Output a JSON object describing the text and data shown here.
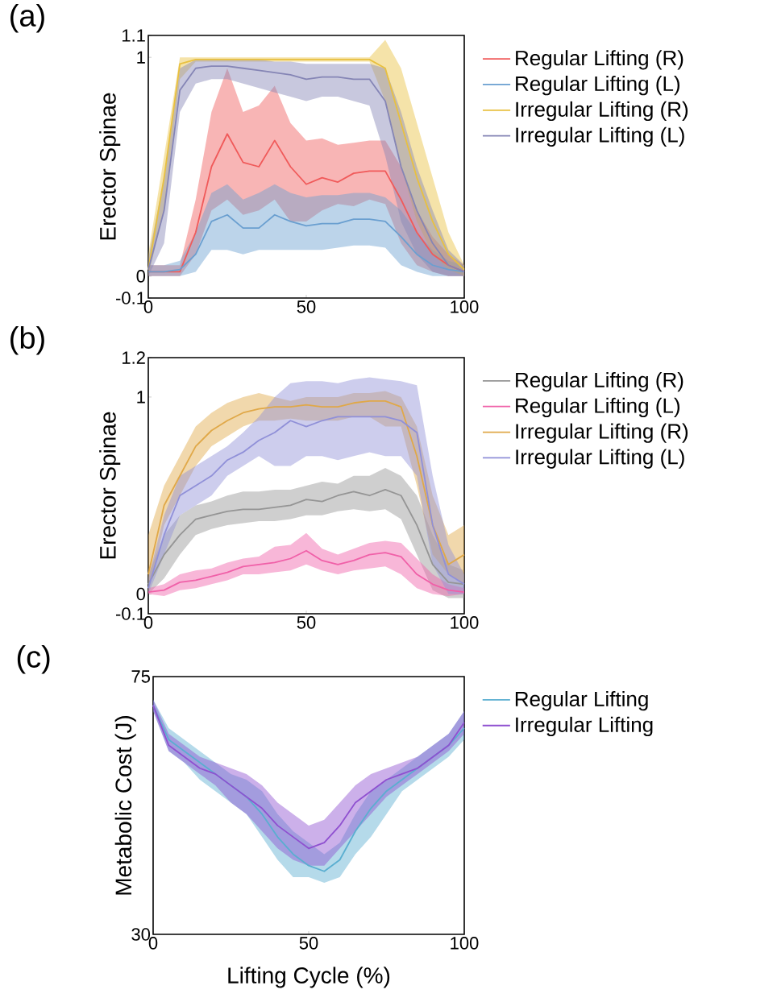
{
  "chart_data": [
    {
      "type": "line",
      "title": "(a)",
      "ylabel": "Erector Spinae",
      "xlim": [
        0,
        100
      ],
      "ylim": [
        -0.1,
        1.1
      ],
      "xticks": [
        0,
        50,
        100
      ],
      "yticks": [
        -0.1,
        0,
        1,
        1.1
      ],
      "legend": "right",
      "grid": false,
      "line_style": "solid",
      "x": [
        0,
        5,
        10,
        15,
        20,
        25,
        30,
        35,
        40,
        45,
        50,
        55,
        60,
        65,
        70,
        75,
        80,
        85,
        90,
        95,
        100
      ],
      "series": [
        {
          "name": "Regular Lifting (R)",
          "color": "#f05a5a",
          "values": [
            0.02,
            0.02,
            0.02,
            0.2,
            0.5,
            0.65,
            0.52,
            0.5,
            0.62,
            0.5,
            0.42,
            0.45,
            0.43,
            0.47,
            0.48,
            0.48,
            0.35,
            0.2,
            0.1,
            0.05,
            0.02
          ],
          "lower": [
            0,
            0,
            0,
            0.1,
            0.3,
            0.35,
            0.28,
            0.3,
            0.35,
            0.25,
            0.25,
            0.3,
            0.33,
            0.32,
            0.35,
            0.33,
            0.15,
            0.05,
            0.02,
            0,
            0
          ],
          "upper": [
            0.05,
            0.05,
            0.05,
            0.35,
            0.75,
            0.95,
            0.75,
            0.78,
            0.87,
            0.7,
            0.62,
            0.63,
            0.6,
            0.61,
            0.62,
            0.62,
            0.5,
            0.3,
            0.18,
            0.1,
            0.05
          ]
        },
        {
          "name": "Regular Lifting (L)",
          "color": "#6a9fd0",
          "values": [
            0.02,
            0.02,
            0.03,
            0.1,
            0.25,
            0.28,
            0.22,
            0.22,
            0.28,
            0.25,
            0.23,
            0.24,
            0.24,
            0.26,
            0.26,
            0.25,
            0.18,
            0.1,
            0.05,
            0.03,
            0.02
          ],
          "lower": [
            0,
            0,
            0,
            0.02,
            0.12,
            0.12,
            0.1,
            0.12,
            0.12,
            0.12,
            0.12,
            0.12,
            0.13,
            0.14,
            0.14,
            0.13,
            0.05,
            0.02,
            0,
            0,
            0
          ],
          "upper": [
            0.05,
            0.05,
            0.07,
            0.2,
            0.38,
            0.42,
            0.35,
            0.38,
            0.42,
            0.38,
            0.36,
            0.37,
            0.37,
            0.38,
            0.38,
            0.36,
            0.3,
            0.2,
            0.12,
            0.07,
            0.05
          ]
        },
        {
          "name": "Irregular Lifting (R)",
          "color": "#e8c040",
          "values": [
            0.03,
            0.45,
            0.97,
            0.99,
            0.99,
            0.99,
            0.99,
            0.99,
            0.99,
            0.99,
            0.99,
            0.99,
            0.99,
            0.99,
            0.99,
            0.95,
            0.7,
            0.45,
            0.25,
            0.1,
            0.03
          ],
          "lower": [
            0,
            0.3,
            0.9,
            0.98,
            0.98,
            0.98,
            0.98,
            0.98,
            0.98,
            0.98,
            0.98,
            0.98,
            0.98,
            0.98,
            0.98,
            0.8,
            0.5,
            0.25,
            0.1,
            0.03,
            0
          ],
          "upper": [
            0.1,
            0.55,
            1.0,
            1.0,
            1.0,
            1.0,
            1.0,
            1.0,
            1.0,
            1.0,
            1.0,
            1.0,
            1.0,
            1.0,
            1.0,
            1.08,
            0.95,
            0.7,
            0.45,
            0.2,
            0.05
          ]
        },
        {
          "name": "Irregular Lifting (L)",
          "color": "#8585b5",
          "values": [
            0.03,
            0.3,
            0.85,
            0.95,
            0.96,
            0.96,
            0.95,
            0.94,
            0.93,
            0.92,
            0.9,
            0.91,
            0.91,
            0.9,
            0.9,
            0.8,
            0.5,
            0.3,
            0.15,
            0.05,
            0.02
          ],
          "lower": [
            0,
            0.15,
            0.75,
            0.88,
            0.9,
            0.9,
            0.88,
            0.86,
            0.84,
            0.82,
            0.8,
            0.82,
            0.82,
            0.8,
            0.78,
            0.55,
            0.25,
            0.1,
            0.02,
            0,
            0
          ],
          "upper": [
            0.08,
            0.45,
            0.95,
            0.99,
            0.99,
            0.99,
            0.99,
            0.99,
            0.98,
            0.98,
            0.97,
            0.97,
            0.97,
            0.97,
            0.97,
            0.95,
            0.75,
            0.5,
            0.3,
            0.12,
            0.05
          ]
        }
      ]
    },
    {
      "type": "line",
      "title": "(b)",
      "ylabel": "Erector Spinae",
      "xlim": [
        0,
        100
      ],
      "ylim": [
        -0.1,
        1.2
      ],
      "xticks": [
        0,
        50,
        100
      ],
      "yticks": [
        -0.1,
        0,
        1,
        1.2
      ],
      "legend": "right",
      "grid": false,
      "line_style": "solid",
      "x": [
        0,
        5,
        10,
        15,
        20,
        25,
        30,
        35,
        40,
        45,
        50,
        55,
        60,
        65,
        70,
        75,
        80,
        85,
        90,
        95,
        100
      ],
      "series": [
        {
          "name": "Regular Lifting (R)",
          "color": "#959595",
          "values": [
            0.05,
            0.2,
            0.3,
            0.38,
            0.4,
            0.42,
            0.43,
            0.43,
            0.44,
            0.45,
            0.48,
            0.47,
            0.5,
            0.52,
            0.5,
            0.53,
            0.5,
            0.35,
            0.15,
            0.06,
            0.05
          ],
          "lower": [
            0,
            0.08,
            0.2,
            0.3,
            0.33,
            0.35,
            0.36,
            0.37,
            0.37,
            0.38,
            0.4,
            0.4,
            0.42,
            0.43,
            0.42,
            0.43,
            0.38,
            0.2,
            0.02,
            -0.02,
            -0.02
          ],
          "upper": [
            0.1,
            0.3,
            0.4,
            0.45,
            0.47,
            0.5,
            0.52,
            0.52,
            0.53,
            0.53,
            0.55,
            0.57,
            0.56,
            0.6,
            0.6,
            0.64,
            0.6,
            0.5,
            0.3,
            0.15,
            0.12
          ]
        },
        {
          "name": "Regular Lifting (L)",
          "color": "#f060a8",
          "values": [
            0.01,
            0.02,
            0.06,
            0.07,
            0.09,
            0.11,
            0.14,
            0.15,
            0.16,
            0.18,
            0.22,
            0.17,
            0.15,
            0.17,
            0.2,
            0.21,
            0.19,
            0.1,
            0.05,
            0.02,
            0.01
          ],
          "lower": [
            0,
            -0.01,
            0.02,
            0.03,
            0.05,
            0.07,
            0.1,
            0.1,
            0.11,
            0.12,
            0.15,
            0.12,
            0.1,
            0.12,
            0.13,
            0.14,
            0.1,
            0.03,
            0,
            -0.01,
            0
          ],
          "upper": [
            0.03,
            0.05,
            0.1,
            0.12,
            0.13,
            0.16,
            0.18,
            0.19,
            0.24,
            0.25,
            0.31,
            0.23,
            0.2,
            0.23,
            0.26,
            0.27,
            0.26,
            0.18,
            0.1,
            0.05,
            0.03
          ]
        },
        {
          "name": "Irregular Lifting (R)",
          "color": "#e0a848",
          "values": [
            0.1,
            0.45,
            0.6,
            0.75,
            0.83,
            0.88,
            0.92,
            0.94,
            0.95,
            0.95,
            0.96,
            0.95,
            0.95,
            0.97,
            0.98,
            0.98,
            0.95,
            0.7,
            0.35,
            0.15,
            0.2
          ],
          "lower": [
            0,
            0.35,
            0.5,
            0.65,
            0.75,
            0.8,
            0.85,
            0.88,
            0.88,
            0.89,
            0.88,
            0.88,
            0.88,
            0.9,
            0.9,
            0.85,
            0.85,
            0.55,
            0.2,
            0.1,
            0.05
          ],
          "upper": [
            0.3,
            0.55,
            0.7,
            0.85,
            0.92,
            0.97,
            1.0,
            1.02,
            1.0,
            0.98,
            1.0,
            1.0,
            1.0,
            1.02,
            1.02,
            1.03,
            1.0,
            0.85,
            0.5,
            0.3,
            0.35
          ]
        },
        {
          "name": "Irregular Lifting (L)",
          "color": "#9090d8",
          "values": [
            0.03,
            0.3,
            0.5,
            0.55,
            0.6,
            0.68,
            0.72,
            0.78,
            0.82,
            0.88,
            0.85,
            0.88,
            0.9,
            0.9,
            0.9,
            0.9,
            0.88,
            0.82,
            0.35,
            0.1,
            0.05
          ],
          "lower": [
            0,
            0.2,
            0.4,
            0.45,
            0.5,
            0.6,
            0.65,
            0.7,
            0.65,
            0.65,
            0.7,
            0.7,
            0.68,
            0.7,
            0.72,
            0.7,
            0.7,
            0.6,
            0.15,
            0,
            0
          ],
          "upper": [
            0.08,
            0.4,
            0.6,
            0.65,
            0.7,
            0.75,
            0.82,
            0.9,
            1.0,
            1.07,
            1.08,
            1.08,
            1.07,
            1.09,
            1.1,
            1.09,
            1.08,
            1.06,
            0.6,
            0.25,
            0.1
          ]
        }
      ]
    },
    {
      "type": "line",
      "title": "(c)",
      "xlabel": "Lifting Cycle (%)",
      "ylabel": "Metabolic Cost (J)",
      "xlim": [
        0,
        100
      ],
      "ylim": [
        30,
        75
      ],
      "xticks": [
        0,
        50,
        100
      ],
      "yticks": [
        30,
        75
      ],
      "legend": "top right",
      "grid": false,
      "line_style": "solid",
      "x": [
        0,
        5,
        10,
        15,
        20,
        25,
        30,
        35,
        40,
        45,
        50,
        55,
        60,
        65,
        70,
        75,
        80,
        85,
        90,
        95,
        100
      ],
      "series": [
        {
          "name": "Regular Lifting",
          "color": "#5aaed0",
          "values": [
            70,
            64,
            62,
            60,
            58,
            56,
            54,
            51,
            47,
            44,
            42,
            41,
            43,
            48,
            52,
            55,
            57,
            59,
            61,
            63,
            66
          ],
          "lower": [
            69,
            62,
            60,
            57,
            55,
            53,
            51,
            47,
            43,
            40,
            40,
            39,
            40,
            44,
            47,
            51,
            55,
            57,
            59,
            61,
            64
          ],
          "upper": [
            71,
            66,
            64,
            62,
            60,
            58,
            57,
            55,
            51,
            48,
            46,
            44,
            46,
            51,
            55,
            57,
            59,
            61,
            63,
            65,
            69
          ]
        },
        {
          "name": "Irregular Lifting",
          "color": "#8f50d0",
          "values": [
            70,
            63,
            61,
            59,
            58,
            56,
            54,
            52,
            49,
            47,
            45,
            46,
            49,
            53,
            55,
            57,
            58,
            59,
            61,
            63,
            67
          ],
          "lower": [
            69,
            62,
            60,
            58,
            56,
            53,
            51,
            48,
            45,
            43,
            42,
            42,
            45,
            48,
            51,
            54,
            56,
            58,
            60,
            62,
            65
          ],
          "upper": [
            71,
            65,
            63,
            61,
            60,
            59,
            58,
            56,
            53,
            51,
            49,
            50,
            53,
            56,
            58,
            59,
            60,
            61,
            63,
            65,
            69
          ]
        }
      ]
    }
  ]
}
